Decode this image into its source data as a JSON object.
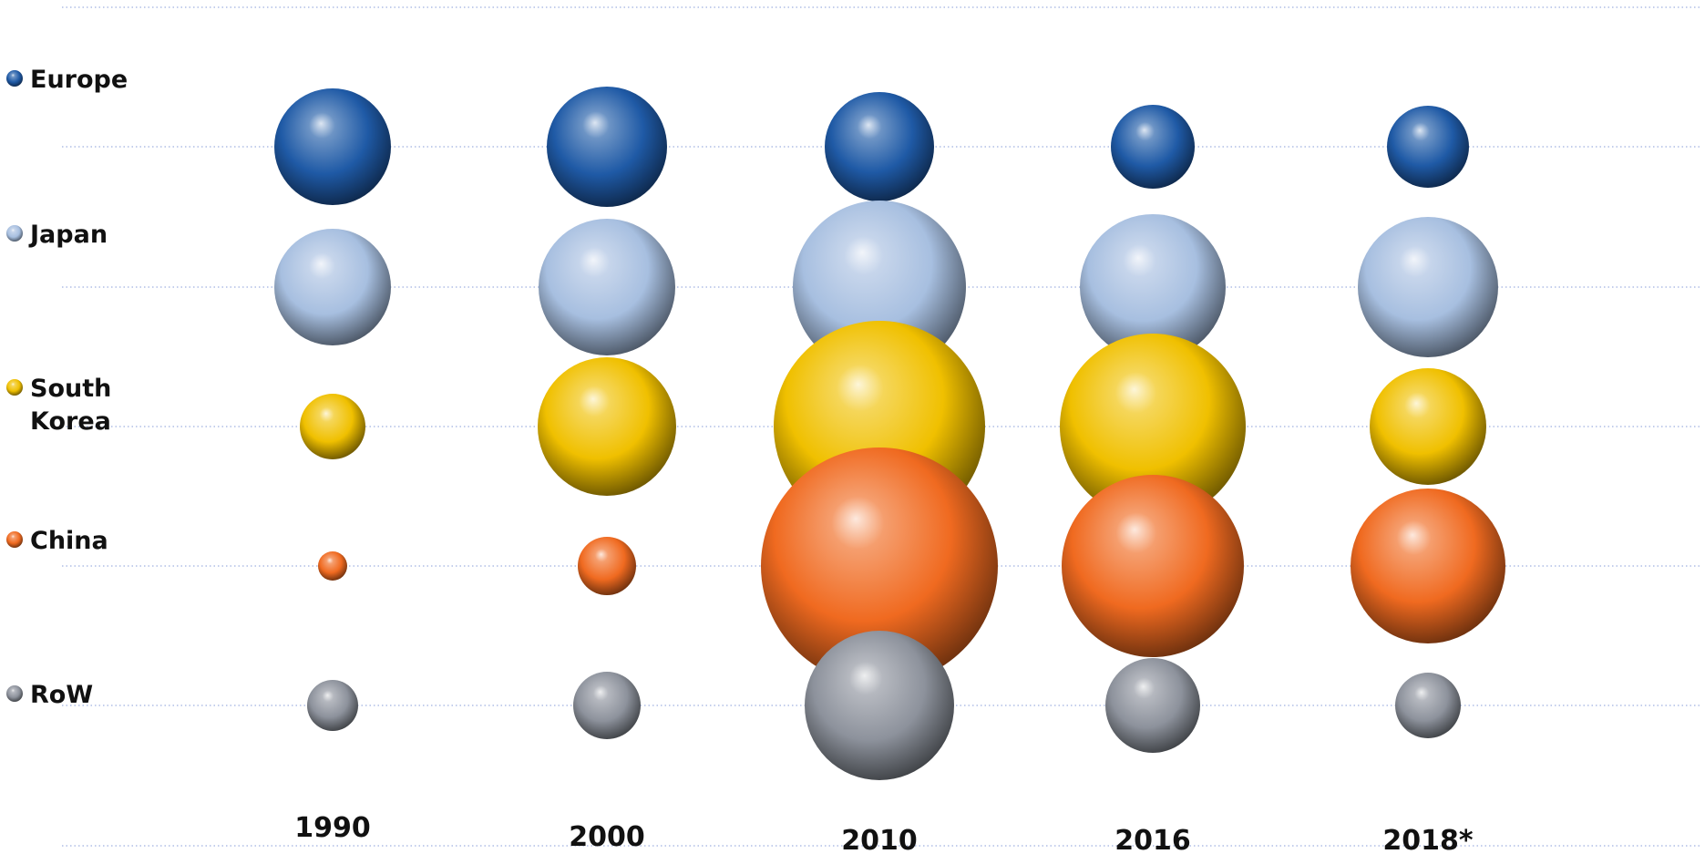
{
  "chart_data": {
    "type": "bubble",
    "title": "",
    "xlabel": "",
    "ylabel": "",
    "grid": true,
    "legend_position": "left",
    "categories": [
      "1990",
      "2000",
      "2010",
      "2016",
      "2018*"
    ],
    "series": [
      {
        "name": "Europe",
        "label_lines": [
          "Europe"
        ],
        "color": "#1f5aa6",
        "values": [
          64,
          66,
          60,
          46,
          45
        ]
      },
      {
        "name": "Japan",
        "label_lines": [
          "Japan"
        ],
        "color": "#a7bfe0",
        "values": [
          64,
          75,
          95,
          80,
          77
        ]
      },
      {
        "name": "South Korea",
        "label_lines": [
          "South",
          "Korea"
        ],
        "color": "#f0c000",
        "values": [
          36,
          76,
          116,
          102,
          64
        ]
      },
      {
        "name": "China",
        "label_lines": [
          "China"
        ],
        "color": "#f06a20",
        "values": [
          16,
          32,
          130,
          100,
          85
        ]
      },
      {
        "name": "RoW",
        "label_lines": [
          "RoW"
        ],
        "color": "#8d929c",
        "values": [
          28,
          37,
          82,
          52,
          36
        ]
      }
    ]
  }
}
